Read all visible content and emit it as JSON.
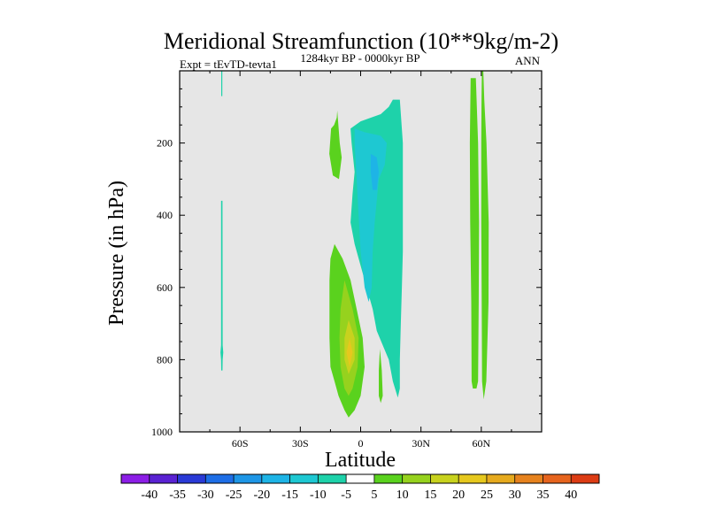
{
  "chart_data": {
    "type": "heatmap",
    "title": "Meridional Streamfunction (10**9kg/m-2)",
    "left_label": "Expt = tEvTD-tevta1",
    "center_label": "1284kyr BP - 0000kyr BP",
    "right_label": "ANN",
    "xlabel": "Latitude",
    "ylabel": "Pressure (in hPa)",
    "xlim": [
      -90,
      90
    ],
    "ylim": [
      1000,
      0
    ],
    "x_ticks": [
      {
        "value": -60,
        "label": "60S"
      },
      {
        "value": -30,
        "label": "30S"
      },
      {
        "value": 0,
        "label": "0"
      },
      {
        "value": 30,
        "label": "30N"
      },
      {
        "value": 60,
        "label": "60N"
      }
    ],
    "y_ticks": [
      {
        "value": 200,
        "label": "200"
      },
      {
        "value": 400,
        "label": "400"
      },
      {
        "value": 600,
        "label": "600"
      },
      {
        "value": 800,
        "label": "800"
      },
      {
        "value": 1000,
        "label": "1000"
      }
    ],
    "background_color": "#e6e6e6",
    "colorbar": {
      "labels": [
        "-40",
        "-35",
        "-30",
        "-25",
        "-20",
        "-15",
        "-10",
        "-5",
        "5",
        "10",
        "15",
        "20",
        "25",
        "30",
        "35",
        "40"
      ],
      "colors": [
        "#8c1ee6",
        "#5a22d2",
        "#2a3ad6",
        "#1e6ee6",
        "#1e96e6",
        "#1eb4e6",
        "#1ec8d2",
        "#1ed2aa",
        "#ffffff",
        "#5ad21e",
        "#96d21e",
        "#c8d21e",
        "#e6c81e",
        "#e6aa1e",
        "#e6821e",
        "#e6641e",
        "#dc3c14"
      ]
    },
    "contours": [
      {
        "name": "sh-high-lat-thin-negative",
        "level": -5,
        "color": "#1ed2aa",
        "points": [
          [
            -69.3,
            0
          ],
          [
            -68.8,
            0
          ],
          [
            -68.8,
            70
          ],
          [
            -69.3,
            70
          ]
        ]
      },
      {
        "name": "sh-high-lat-thin-negative-lower",
        "level": -5,
        "color": "#1ed2aa",
        "points": [
          [
            -69.4,
            360
          ],
          [
            -68.7,
            360
          ],
          [
            -68.6,
            760
          ],
          [
            -68.3,
            780
          ],
          [
            -68.6,
            800
          ],
          [
            -68.7,
            830
          ],
          [
            -69.3,
            830
          ],
          [
            -69.4,
            800
          ],
          [
            -69.7,
            780
          ],
          [
            -69.4,
            760
          ]
        ]
      },
      {
        "name": "upper-left-positive-cell",
        "level": 5,
        "color": "#5ad21e",
        "points": [
          [
            -11.6,
            110
          ],
          [
            -10.4,
            200
          ],
          [
            -9.4,
            240
          ],
          [
            -10.8,
            300
          ],
          [
            -13.8,
            290
          ],
          [
            -15.6,
            230
          ],
          [
            -14.7,
            160
          ],
          [
            -13.2,
            150
          ],
          [
            -11.9,
            130
          ]
        ]
      },
      {
        "name": "lower-positive-cell",
        "level": 5,
        "color": "#5ad21e",
        "points": [
          [
            -13,
            480
          ],
          [
            -9,
            520
          ],
          [
            -5,
            580
          ],
          [
            -2,
            660
          ],
          [
            1,
            740
          ],
          [
            2,
            820
          ],
          [
            0,
            900
          ],
          [
            -3,
            940
          ],
          [
            -6,
            960
          ],
          [
            -8,
            940
          ],
          [
            -11,
            900
          ],
          [
            -13,
            860
          ],
          [
            -15,
            820
          ],
          [
            -15.5,
            740
          ],
          [
            -15.5,
            660
          ],
          [
            -15.5,
            580
          ],
          [
            -15,
            520
          ]
        ]
      },
      {
        "name": "lower-positive-cell-10",
        "level": 10,
        "color": "#96d21e",
        "points": [
          [
            -8,
            580
          ],
          [
            -4,
            660
          ],
          [
            -1,
            740
          ],
          [
            -1.5,
            820
          ],
          [
            -4,
            880
          ],
          [
            -6,
            900
          ],
          [
            -8,
            880
          ],
          [
            -10,
            820
          ],
          [
            -10.5,
            740
          ],
          [
            -10,
            660
          ]
        ]
      },
      {
        "name": "lower-positive-cell-15",
        "level": 15,
        "color": "#c8d21e",
        "points": [
          [
            -6,
            690
          ],
          [
            -3,
            740
          ],
          [
            -3,
            800
          ],
          [
            -6,
            840
          ],
          [
            -8,
            800
          ],
          [
            -8,
            740
          ]
        ]
      },
      {
        "name": "lower-positive-cell-20",
        "level": 20,
        "color": "#e6c81e",
        "points": [
          [
            -5.5,
            740
          ],
          [
            -4,
            780
          ],
          [
            -5.5,
            820
          ],
          [
            -7,
            780
          ]
        ]
      },
      {
        "name": "small-positive-near-eq",
        "level": 5,
        "color": "#5ad21e",
        "points": [
          [
            9.6,
            770
          ],
          [
            10.5,
            830
          ],
          [
            11,
            900
          ],
          [
            10,
            920
          ],
          [
            9,
            900
          ],
          [
            9,
            830
          ]
        ]
      },
      {
        "name": "tropical-negative-cell",
        "level": -5,
        "color": "#1ed2aa",
        "points": [
          [
            16,
            80
          ],
          [
            19.5,
            80
          ],
          [
            21,
            200
          ],
          [
            21,
            500
          ],
          [
            20.5,
            600
          ],
          [
            20,
            700
          ],
          [
            19.5,
            800
          ],
          [
            19.5,
            880
          ],
          [
            18.5,
            905
          ],
          [
            16,
            860
          ],
          [
            14,
            800
          ],
          [
            11,
            760
          ],
          [
            8,
            720
          ],
          [
            6,
            660
          ],
          [
            3,
            600
          ],
          [
            0,
            540
          ],
          [
            -3,
            480
          ],
          [
            -5,
            420
          ],
          [
            -4,
            340
          ],
          [
            -3,
            280
          ],
          [
            -4.5,
            200
          ],
          [
            -5,
            160
          ],
          [
            0,
            140
          ],
          [
            5,
            130
          ],
          [
            10,
            120
          ],
          [
            14,
            100
          ]
        ]
      },
      {
        "name": "tropical-negative-cell-10",
        "level": -10,
        "color": "#1ec8d2",
        "points": [
          [
            -3,
            160
          ],
          [
            2,
            170
          ],
          [
            10,
            180
          ],
          [
            13,
            200
          ],
          [
            12,
            260
          ],
          [
            9,
            300
          ],
          [
            8,
            360
          ],
          [
            7,
            420
          ],
          [
            6,
            500
          ],
          [
            5.5,
            600
          ],
          [
            4,
            640
          ],
          [
            2,
            600
          ],
          [
            0,
            500
          ],
          [
            -1,
            400
          ],
          [
            -2,
            300
          ],
          [
            -3,
            200
          ]
        ]
      },
      {
        "name": "tropical-negative-cell-15",
        "level": -15,
        "color": "#1eb4e6",
        "points": [
          [
            5,
            230
          ],
          [
            8,
            240
          ],
          [
            9,
            280
          ],
          [
            8,
            330
          ],
          [
            6,
            330
          ],
          [
            5,
            280
          ]
        ]
      },
      {
        "name": "nh-midlat-positive-band-left",
        "level": 5,
        "color": "#5ad21e",
        "points": [
          [
            54.7,
            20
          ],
          [
            57.3,
            20
          ],
          [
            58.4,
            200
          ],
          [
            58.9,
            420
          ],
          [
            58.7,
            640
          ],
          [
            58.4,
            860
          ],
          [
            57.6,
            880
          ],
          [
            55.8,
            880
          ],
          [
            55.2,
            860
          ],
          [
            55,
            640
          ],
          [
            54.5,
            420
          ],
          [
            54.3,
            200
          ]
        ]
      },
      {
        "name": "nh-midlat-positive-band-right",
        "level": 5,
        "color": "#5ad21e",
        "points": [
          [
            60.3,
            0
          ],
          [
            61,
            0
          ],
          [
            61.5,
            80
          ],
          [
            62.6,
            200
          ],
          [
            63.7,
            420
          ],
          [
            63.6,
            640
          ],
          [
            62.5,
            860
          ],
          [
            61.2,
            910
          ],
          [
            60.4,
            860
          ],
          [
            60.2,
            640
          ],
          [
            60,
            420
          ],
          [
            60,
            200
          ],
          [
            60.1,
            80
          ]
        ]
      }
    ]
  }
}
